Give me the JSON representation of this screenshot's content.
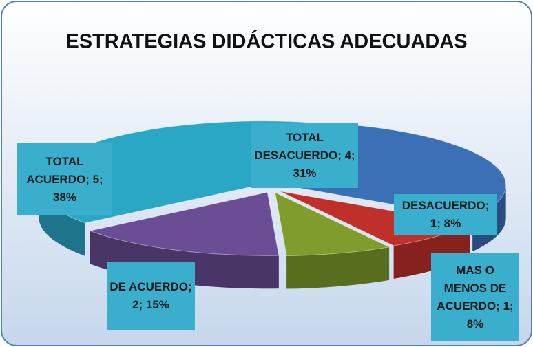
{
  "chart_data": {
    "type": "pie",
    "title": "ESTRATEGIAS DIDÁCTICAS ADECUADAS",
    "categories": [
      "TOTAL DESACUERDO",
      "DESACUERDO",
      "MAS O MENOS DE ACUERDO",
      "DE ACUERDO",
      "TOTAL ACUERDO"
    ],
    "values": [
      4,
      1,
      1,
      2,
      5
    ],
    "value_labels": [
      "; 4; 31%",
      "; 1; 8%",
      "; 1; 8%",
      "; 2; 15%",
      "; 5; 38%"
    ],
    "colors": [
      "#3b6fb6",
      "#c0302a",
      "#7f9c2c",
      "#6a4d94",
      "#2ba7c6"
    ]
  }
}
